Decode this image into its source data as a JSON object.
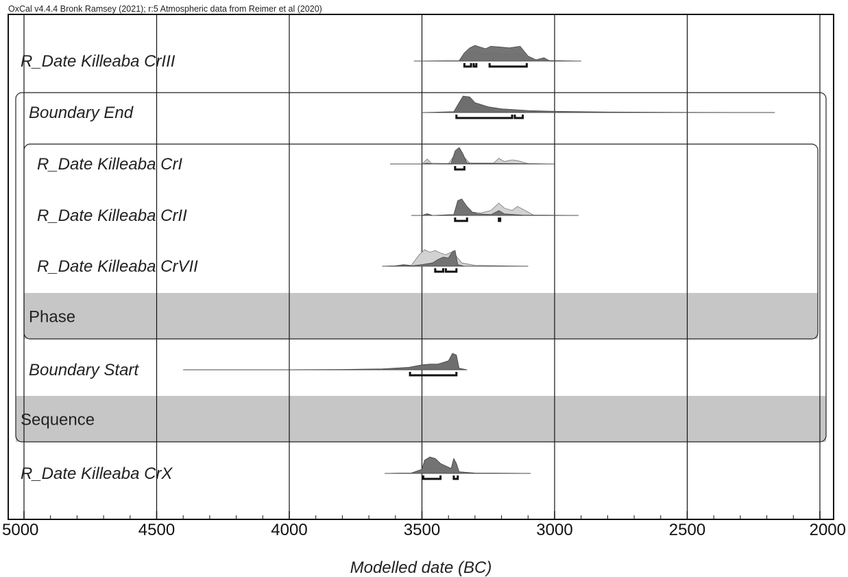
{
  "chart_data": {
    "type": "ridgeline",
    "credit": "OxCal v4.4.4 Bronk Ramsey (2021); r:5 Atmospheric data from Reimer et al (2020)",
    "xlabel": "Modelled date (BC)",
    "xlim": [
      5060,
      1930
    ],
    "major_ticks": [
      5000,
      4500,
      4000,
      3500,
      3000,
      2500,
      2000
    ],
    "tick_labels": [
      "5000",
      "4500",
      "4000",
      "3500",
      "3000",
      "2500",
      "2000"
    ],
    "minor_tick_step": 100,
    "grid": true,
    "groups": [
      {
        "label": "Sequence",
        "first_row": 1,
        "last_row": 5
      },
      {
        "label": "Phase",
        "first_row": 2,
        "last_row": 4
      }
    ],
    "rows": [
      {
        "label": "R_Date Killeaba CrIII",
        "type": "R_Date",
        "range": [
          3530,
          2900
        ],
        "prior": [
          [
            3530,
            0
          ],
          [
            3360,
            0.02
          ],
          [
            3340,
            0.3
          ],
          [
            3320,
            0.5
          ],
          [
            3300,
            0.6
          ],
          [
            3280,
            0.5
          ],
          [
            3260,
            0.4
          ],
          [
            3240,
            0.5
          ],
          [
            3200,
            0.45
          ],
          [
            3170,
            0.4
          ],
          [
            3130,
            0.45
          ],
          [
            3100,
            0.15
          ],
          [
            3070,
            0.05
          ],
          [
            3040,
            0.12
          ],
          [
            3020,
            0.02
          ],
          [
            2900,
            0
          ]
        ],
        "posterior": [
          [
            3530,
            0
          ],
          [
            3360,
            0.02
          ],
          [
            3340,
            0.5
          ],
          [
            3320,
            0.8
          ],
          [
            3300,
            0.95
          ],
          [
            3280,
            0.85
          ],
          [
            3260,
            0.75
          ],
          [
            3240,
            0.9
          ],
          [
            3200,
            0.85
          ],
          [
            3170,
            0.8
          ],
          [
            3130,
            0.9
          ],
          [
            3100,
            0.3
          ],
          [
            3070,
            0.08
          ],
          [
            3040,
            0.2
          ],
          [
            3020,
            0.03
          ],
          [
            2900,
            0
          ]
        ],
        "hpd": [
          [
            3340,
            3315
          ],
          [
            3305,
            3295
          ],
          [
            3245,
            3105
          ]
        ]
      },
      {
        "label": "Boundary End",
        "type": "Boundary",
        "range": [
          3500,
          2170
        ],
        "prior": [],
        "posterior": [
          [
            3500,
            0
          ],
          [
            3380,
            0.05
          ],
          [
            3360,
            0.6
          ],
          [
            3345,
            1.0
          ],
          [
            3320,
            0.95
          ],
          [
            3300,
            0.6
          ],
          [
            3250,
            0.35
          ],
          [
            3200,
            0.22
          ],
          [
            3100,
            0.12
          ],
          [
            3000,
            0.07
          ],
          [
            2800,
            0.03
          ],
          [
            2500,
            0.01
          ],
          [
            2170,
            0
          ]
        ],
        "hpd": [
          [
            3370,
            3160
          ],
          [
            3150,
            3120
          ]
        ]
      },
      {
        "label": "R_Date Killeaba CrI",
        "type": "R_Date",
        "range": [
          3620,
          3000
        ],
        "prior": [
          [
            3620,
            0
          ],
          [
            3500,
            0
          ],
          [
            3480,
            0.3
          ],
          [
            3465,
            0.05
          ],
          [
            3400,
            0.02
          ],
          [
            3370,
            0.7
          ],
          [
            3355,
            0.9
          ],
          [
            3340,
            0.4
          ],
          [
            3320,
            0.05
          ],
          [
            3230,
            0.05
          ],
          [
            3210,
            0.35
          ],
          [
            3190,
            0.15
          ],
          [
            3160,
            0.25
          ],
          [
            3140,
            0.2
          ],
          [
            3100,
            0.02
          ],
          [
            3000,
            0
          ]
        ],
        "posterior": [
          [
            3620,
            0
          ],
          [
            3500,
            0
          ],
          [
            3480,
            0.05
          ],
          [
            3460,
            0
          ],
          [
            3390,
            0.03
          ],
          [
            3375,
            0.8
          ],
          [
            3360,
            1.0
          ],
          [
            3345,
            0.6
          ],
          [
            3330,
            0.05
          ],
          [
            3000,
            0
          ]
        ],
        "hpd": [
          [
            3375,
            3340
          ]
        ]
      },
      {
        "label": "R_Date Killeaba CrII",
        "type": "R_Date",
        "range": [
          3540,
          2910
        ],
        "prior": [
          [
            3540,
            0
          ],
          [
            3500,
            0
          ],
          [
            3480,
            0.1
          ],
          [
            3460,
            0
          ],
          [
            3380,
            0.05
          ],
          [
            3360,
            0.85
          ],
          [
            3340,
            0.5
          ],
          [
            3310,
            0.2
          ],
          [
            3280,
            0.15
          ],
          [
            3240,
            0.3
          ],
          [
            3210,
            0.75
          ],
          [
            3190,
            0.45
          ],
          [
            3160,
            0.3
          ],
          [
            3140,
            0.55
          ],
          [
            3110,
            0.3
          ],
          [
            3080,
            0.02
          ],
          [
            2910,
            0
          ]
        ],
        "posterior": [
          [
            3540,
            0
          ],
          [
            3500,
            0
          ],
          [
            3480,
            0.1
          ],
          [
            3460,
            0
          ],
          [
            3380,
            0.05
          ],
          [
            3365,
            0.9
          ],
          [
            3350,
            1.0
          ],
          [
            3330,
            0.55
          ],
          [
            3310,
            0.2
          ],
          [
            3290,
            0.1
          ],
          [
            3240,
            0.05
          ],
          [
            3210,
            0.3
          ],
          [
            3190,
            0.1
          ],
          [
            3150,
            0.05
          ],
          [
            3120,
            0.02
          ],
          [
            2910,
            0
          ]
        ],
        "hpd": [
          [
            3375,
            3330
          ],
          [
            3210,
            3205
          ]
        ]
      },
      {
        "label": "R_Date Killeaba CrVII",
        "type": "R_Date",
        "range": [
          3650,
          3100
        ],
        "prior": [
          [
            3650,
            0
          ],
          [
            3600,
            0.02
          ],
          [
            3570,
            0.1
          ],
          [
            3540,
            0.05
          ],
          [
            3510,
            0.7
          ],
          [
            3490,
            1.0
          ],
          [
            3470,
            0.85
          ],
          [
            3450,
            0.95
          ],
          [
            3430,
            0.8
          ],
          [
            3410,
            0.7
          ],
          [
            3390,
            0.85
          ],
          [
            3370,
            0.6
          ],
          [
            3350,
            0.2
          ],
          [
            3300,
            0.05
          ],
          [
            3100,
            0
          ]
        ],
        "posterior": [
          [
            3650,
            0
          ],
          [
            3600,
            0.02
          ],
          [
            3570,
            0.08
          ],
          [
            3540,
            0.02
          ],
          [
            3500,
            0.1
          ],
          [
            3460,
            0.2
          ],
          [
            3440,
            0.4
          ],
          [
            3420,
            0.55
          ],
          [
            3400,
            0.5
          ],
          [
            3385,
            0.9
          ],
          [
            3375,
            0.95
          ],
          [
            3365,
            0.1
          ],
          [
            3340,
            0
          ],
          [
            3100,
            0
          ]
        ],
        "hpd": [
          [
            3450,
            3420
          ],
          [
            3410,
            3370
          ]
        ]
      },
      {
        "label": "Boundary Start",
        "type": "Boundary",
        "range": [
          4400,
          3330
        ],
        "prior": [],
        "posterior": [
          [
            4400,
            0
          ],
          [
            4000,
            0.005
          ],
          [
            3800,
            0.02
          ],
          [
            3650,
            0.06
          ],
          [
            3550,
            0.15
          ],
          [
            3500,
            0.3
          ],
          [
            3470,
            0.35
          ],
          [
            3440,
            0.35
          ],
          [
            3420,
            0.45
          ],
          [
            3400,
            0.55
          ],
          [
            3385,
            1.0
          ],
          [
            3370,
            0.9
          ],
          [
            3360,
            0.1
          ],
          [
            3330,
            0
          ]
        ],
        "hpd": [
          [
            3545,
            3370
          ]
        ]
      },
      {
        "label": "R_Date Killeaba CrX",
        "type": "R_Date",
        "range": [
          3640,
          3090
        ],
        "prior": [
          [
            3640,
            0
          ],
          [
            3600,
            0.01
          ],
          [
            3540,
            0.02
          ],
          [
            3500,
            0.25
          ],
          [
            3490,
            0.8
          ],
          [
            3470,
            1.0
          ],
          [
            3450,
            0.9
          ],
          [
            3430,
            0.6
          ],
          [
            3410,
            0.45
          ],
          [
            3390,
            0.3
          ],
          [
            3380,
            0.9
          ],
          [
            3370,
            0.6
          ],
          [
            3360,
            0.1
          ],
          [
            3300,
            0.02
          ],
          [
            3090,
            0
          ]
        ],
        "posterior": [
          [
            3640,
            0
          ],
          [
            3600,
            0.01
          ],
          [
            3540,
            0.02
          ],
          [
            3500,
            0.25
          ],
          [
            3490,
            0.8
          ],
          [
            3470,
            1.0
          ],
          [
            3450,
            0.9
          ],
          [
            3430,
            0.6
          ],
          [
            3410,
            0.45
          ],
          [
            3390,
            0.3
          ],
          [
            3380,
            0.9
          ],
          [
            3370,
            0.6
          ],
          [
            3360,
            0.1
          ],
          [
            3300,
            0.02
          ],
          [
            3090,
            0
          ]
        ],
        "hpd": [
          [
            3495,
            3430
          ],
          [
            3380,
            3365
          ]
        ]
      }
    ],
    "colors": {
      "posterior": "#6e6e6e",
      "prior": "#d2d2d2",
      "band": "#c6c6c6",
      "grid": "#111111"
    }
  }
}
